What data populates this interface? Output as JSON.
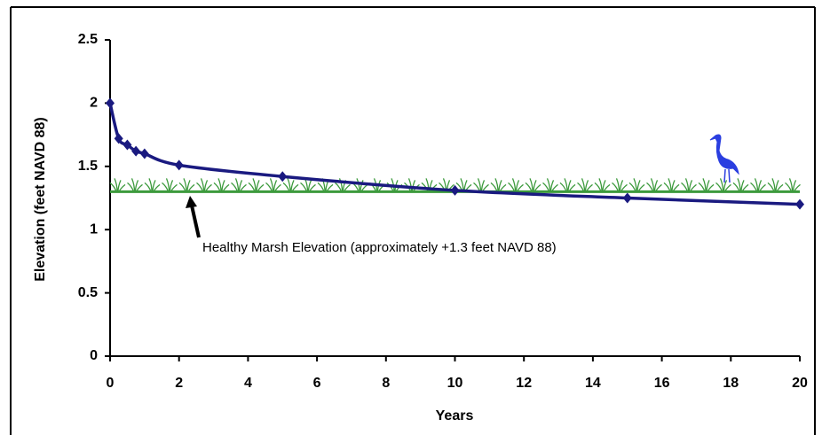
{
  "chart_data": {
    "type": "line",
    "x_label": "Years",
    "y_label": "Elevation (feet NAVD 88)",
    "x": [
      0,
      0.25,
      0.5,
      0.75,
      1,
      2,
      5,
      10,
      15,
      20
    ],
    "series": [
      {
        "color": "#1a1a80",
        "values": [
          2.0,
          1.72,
          1.67,
          1.62,
          1.6,
          1.51,
          1.42,
          1.31,
          1.25,
          1.2
        ]
      }
    ],
    "xlim": [
      0,
      20
    ],
    "xticks": [
      0,
      2,
      4,
      6,
      8,
      10,
      12,
      14,
      16,
      18,
      20
    ],
    "ylim": [
      0,
      2.5
    ],
    "yticks": [
      0,
      0.5,
      1,
      1.5,
      2,
      2.5
    ],
    "reference_line": {
      "value": 1.3,
      "color": "#3c9a3c"
    },
    "annotation": "Healthy Marsh Elevation (approximately +1.3 feet NAVD 88)"
  }
}
